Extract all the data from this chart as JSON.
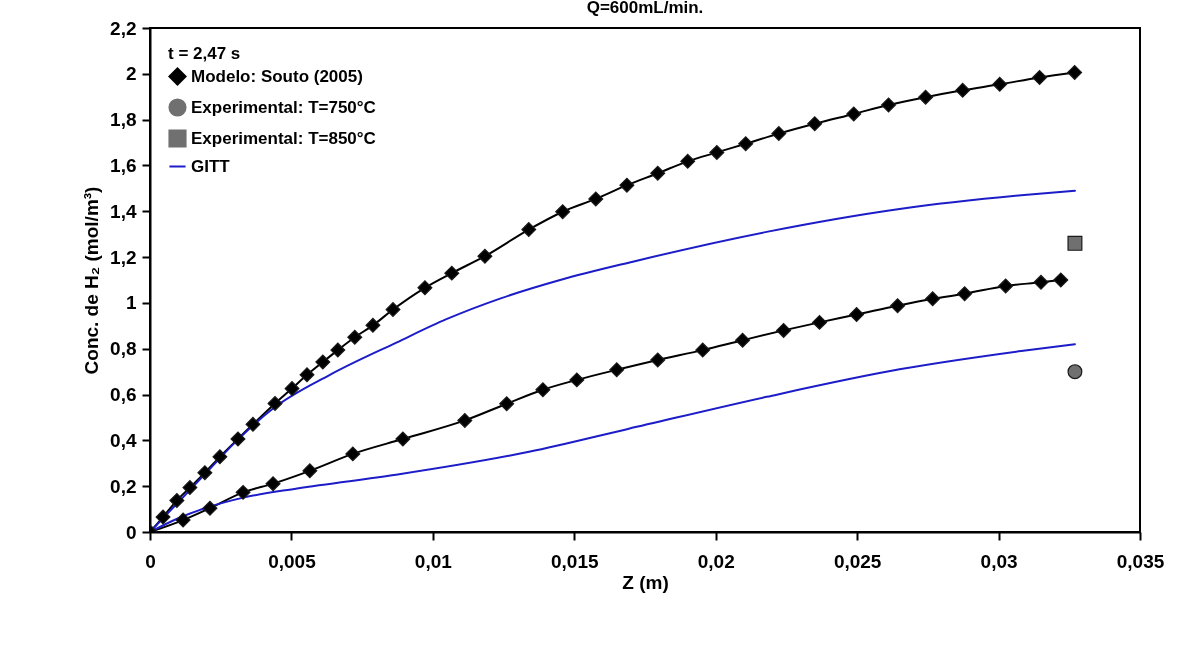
{
  "chart_data": {
    "type": "line",
    "title": "Q=600mL/min.",
    "xlabel": "Z (m)",
    "ylabel": "Conc. de H₂ (mol/m³)",
    "legend_title": "t = 2,47 s",
    "legend": "top left",
    "grid": false,
    "xlim": [
      0,
      0.035
    ],
    "xticks": [
      0,
      {
        "value": 0.005,
        "label": "0,005"
      },
      {
        "value": 0.01,
        "label": "0,01"
      },
      {
        "value": 0.015,
        "label": "0,015"
      },
      {
        "value": 0.02,
        "label": "0,02"
      },
      {
        "value": 0.025,
        "label": "0,025"
      },
      {
        "value": 0.03,
        "label": "0,03"
      },
      {
        "value": 0.035,
        "label": "0,035"
      }
    ],
    "ylim": [
      0,
      2.2
    ],
    "yticks": [
      0,
      {
        "value": 0.2,
        "label": "0,2"
      },
      {
        "value": 0.4,
        "label": "0,4"
      },
      {
        "value": 0.6,
        "label": "0,6"
      },
      {
        "value": 0.8,
        "label": "0,8"
      },
      1,
      {
        "value": 1.2,
        "label": "1,2"
      },
      {
        "value": 1.4,
        "label": "1,4"
      },
      {
        "value": 1.6,
        "label": "1,6"
      },
      {
        "value": 1.8,
        "label": "1,8"
      },
      2,
      {
        "value": 2.2,
        "label": "2,2"
      }
    ],
    "series": [
      {
        "name": "Modelo: Souto (2005)",
        "marker": "diamond",
        "color": "#000000",
        "x": [
          0,
          0.00046,
          0.00095,
          0.00141,
          0.00194,
          0.00247,
          0.00311,
          0.00364,
          0.00442,
          0.00502,
          0.00555,
          0.00611,
          0.00664,
          0.00724,
          0.00788,
          0.00859,
          0.00972,
          0.01067,
          0.01184,
          0.01339,
          0.01459,
          0.01576,
          0.01686,
          0.01795,
          0.01901,
          0.02004,
          0.02106,
          0.02223,
          0.0235,
          0.02488,
          0.02611,
          0.02742,
          0.02873,
          0.03004,
          0.03145,
          0.03269
        ],
        "values": [
          0,
          0.065,
          0.138,
          0.194,
          0.259,
          0.328,
          0.406,
          0.47,
          0.561,
          0.626,
          0.686,
          0.742,
          0.794,
          0.85,
          0.902,
          0.971,
          1.066,
          1.13,
          1.204,
          1.32,
          1.398,
          1.454,
          1.514,
          1.566,
          1.618,
          1.657,
          1.695,
          1.739,
          1.782,
          1.825,
          1.864,
          1.898,
          1.928,
          1.954,
          1.984,
          2.006
        ]
      },
      {
        "marker": "diamond",
        "color": "#000000",
        "x": [
          0,
          0.00117,
          0.00212,
          0.00329,
          0.00435,
          0.00565,
          0.00717,
          0.00894,
          0.01113,
          0.01261,
          0.01389,
          0.01509,
          0.0165,
          0.01795,
          0.01954,
          0.02095,
          0.0224,
          0.02367,
          0.02498,
          0.02643,
          0.02767,
          0.0288,
          0.03025,
          0.0315,
          0.0322
        ],
        "values": [
          0,
          0.052,
          0.104,
          0.173,
          0.211,
          0.267,
          0.341,
          0.406,
          0.487,
          0.56,
          0.621,
          0.664,
          0.708,
          0.751,
          0.794,
          0.837,
          0.88,
          0.915,
          0.949,
          0.988,
          1.018,
          1.04,
          1.074,
          1.09,
          1.1
        ]
      },
      {
        "name": "Experimental: T=750°C",
        "type": "scatter",
        "marker": "circle",
        "color": "#707070",
        "x": [
          0.0327
        ],
        "values": [
          0.7
        ]
      },
      {
        "name": "Experimental: T=850°C",
        "type": "scatter",
        "marker": "square",
        "color": "#707070",
        "x": [
          0.0327
        ],
        "values": [
          1.26
        ]
      },
      {
        "name": "GITT",
        "marker": "none",
        "color": "#1c1cc8",
        "x": [
          0,
          0.001,
          0.002,
          0.003,
          0.00435,
          0.00636,
          0.00873,
          0.0105,
          0.0124,
          0.0145,
          0.01707,
          0.0218,
          0.0265,
          0.0308,
          0.0327
        ],
        "values": [
          0,
          0.13,
          0.26,
          0.39,
          0.539,
          0.686,
          0.828,
          0.93,
          1.02,
          1.1,
          1.18,
          1.31,
          1.41,
          1.47,
          1.49
        ]
      },
      {
        "marker": "none",
        "color": "#1c1cc8",
        "x": [
          0,
          0.001,
          0.0021,
          0.0033,
          0.0052,
          0.0087,
          0.0134,
          0.0169,
          0.0218,
          0.0265,
          0.0308,
          0.0327
        ],
        "values": [
          0,
          0.06,
          0.11,
          0.15,
          0.19,
          0.25,
          0.35,
          0.45,
          0.59,
          0.71,
          0.79,
          0.82
        ]
      }
    ]
  }
}
